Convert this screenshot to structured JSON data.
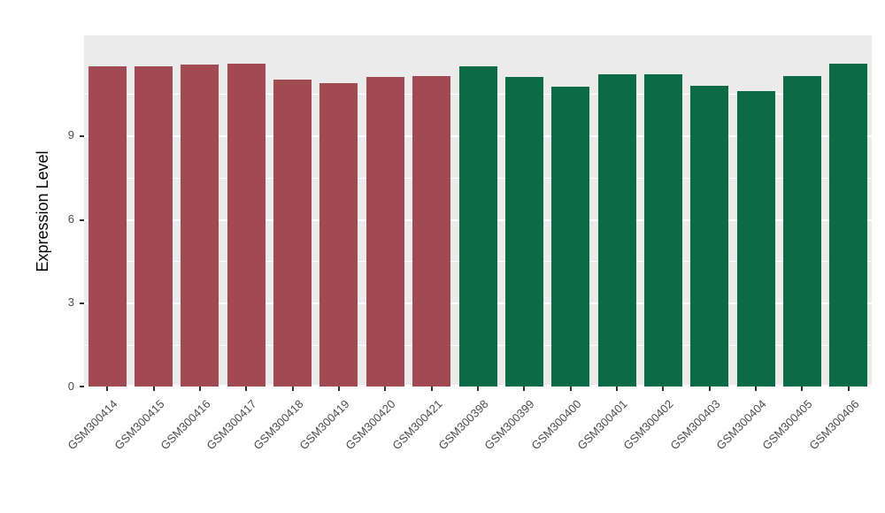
{
  "chart_data": {
    "type": "bar",
    "title": "",
    "xlabel": "",
    "ylabel": "Expression Level",
    "categories": [
      "GSM300414",
      "GSM300415",
      "GSM300416",
      "GSM300417",
      "GSM300418",
      "GSM300419",
      "GSM300420",
      "GSM300421",
      "GSM300398",
      "GSM300399",
      "GSM300400",
      "GSM300401",
      "GSM300402",
      "GSM300403",
      "GSM300404",
      "GSM300405",
      "GSM300406"
    ],
    "values": [
      11.5,
      11.5,
      11.55,
      11.6,
      11.0,
      10.9,
      11.1,
      11.15,
      11.5,
      11.1,
      10.75,
      11.2,
      11.2,
      10.8,
      10.6,
      11.15,
      11.6
    ],
    "bar_colors": [
      "#A24A52",
      "#A24A52",
      "#A24A52",
      "#A24A52",
      "#A24A52",
      "#A24A52",
      "#A24A52",
      "#A24A52",
      "#0C6B46",
      "#0C6B46",
      "#0C6B46",
      "#0C6B46",
      "#0C6B46",
      "#0C6B46",
      "#0C6B46",
      "#0C6B46",
      "#0C6B46"
    ],
    "group_colors": {
      "maroon_group": "#A24A52",
      "green_group": "#0C6B46"
    },
    "yticks": [
      0,
      3,
      6,
      9
    ],
    "minor_yticks": [
      1.5,
      4.5,
      7.5,
      10.5
    ],
    "ylim": [
      0,
      12.6
    ],
    "grid": true,
    "legend": "none",
    "panel_bg": "#EBEBEB",
    "grid_color": "#FFFFFF",
    "tick_label_color": "#4D4D4D",
    "axis_title_color": "#000000"
  }
}
